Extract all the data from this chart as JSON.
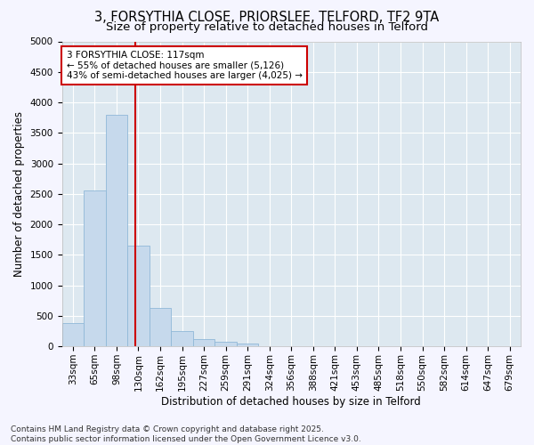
{
  "title_line1": "3, FORSYTHIA CLOSE, PRIORSLEE, TELFORD, TF2 9TA",
  "title_line2": "Size of property relative to detached houses in Telford",
  "xlabel": "Distribution of detached houses by size in Telford",
  "ylabel": "Number of detached properties",
  "categories": [
    "33sqm",
    "65sqm",
    "98sqm",
    "130sqm",
    "162sqm",
    "195sqm",
    "227sqm",
    "259sqm",
    "291sqm",
    "324sqm",
    "356sqm",
    "388sqm",
    "421sqm",
    "453sqm",
    "485sqm",
    "518sqm",
    "550sqm",
    "582sqm",
    "614sqm",
    "647sqm",
    "679sqm"
  ],
  "values": [
    375,
    2550,
    3800,
    1650,
    625,
    250,
    125,
    75,
    50,
    0,
    0,
    0,
    0,
    0,
    0,
    0,
    0,
    0,
    0,
    0,
    0
  ],
  "bar_color": "#c6d9ec",
  "bar_edge_color": "#90b8d8",
  "vline_color": "#cc0000",
  "vline_x": 2.85,
  "annotation_text": "3 FORSYTHIA CLOSE: 117sqm\n← 55% of detached houses are smaller (5,126)\n43% of semi-detached houses are larger (4,025) →",
  "annotation_box_facecolor": "#ffffff",
  "annotation_box_edgecolor": "#cc0000",
  "ylim": [
    0,
    5000
  ],
  "yticks": [
    0,
    500,
    1000,
    1500,
    2000,
    2500,
    3000,
    3500,
    4000,
    4500,
    5000
  ],
  "plot_bg_color": "#dde8f0",
  "fig_bg_color": "#f5f5ff",
  "footer_text": "Contains HM Land Registry data © Crown copyright and database right 2025.\nContains public sector information licensed under the Open Government Licence v3.0.",
  "title_fontsize": 10.5,
  "subtitle_fontsize": 9.5,
  "axis_label_fontsize": 8.5,
  "tick_fontsize": 7.5,
  "annotation_fontsize": 7.5,
  "footer_fontsize": 6.5
}
